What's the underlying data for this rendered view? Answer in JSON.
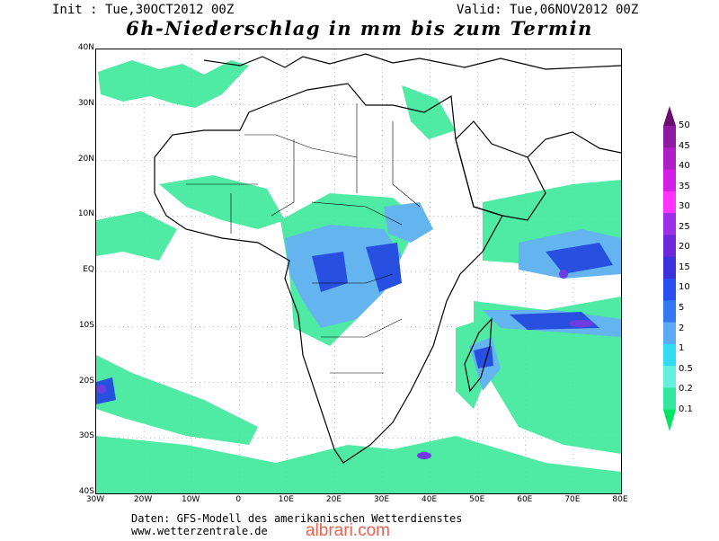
{
  "header": {
    "init": "Init : Tue,30OCT2012 00Z",
    "valid": "Valid: Tue,06NOV2012 00Z",
    "title": "6h-Niederschlag in mm bis zum Termin"
  },
  "map": {
    "region": "Africa",
    "lon_range": [
      -30,
      80
    ],
    "lat_range": [
      -40,
      40
    ],
    "lat_labels": [
      "40N",
      "30N",
      "20N",
      "10N",
      "EQ",
      "10S",
      "20S",
      "30S",
      "40S"
    ],
    "lon_labels": [
      "30W",
      "20W",
      "10W",
      "0",
      "10E",
      "20E",
      "30E",
      "40E",
      "50E",
      "60E",
      "70E",
      "80E"
    ],
    "grid": "dotted",
    "precip_field_colors": [
      "#3ce89a",
      "#64b4f0",
      "#2850e0",
      "#6e3ce0"
    ]
  },
  "legend": {
    "labels": [
      "50",
      "45",
      "40",
      "35",
      "30",
      "25",
      "20",
      "15",
      "10",
      "5",
      "2",
      "1",
      "0.5",
      "0.2",
      "0.1"
    ],
    "colors": [
      "#6a0d6e",
      "#8d1aa0",
      "#b01ec8",
      "#d21ee6",
      "#ff32ff",
      "#9b30e8",
      "#6e28dc",
      "#3c32dc",
      "#2850f0",
      "#3278f0",
      "#5aaaf5",
      "#32dcf5",
      "#64f0dc",
      "#32e6a0",
      "#00e664"
    ]
  },
  "footer": {
    "line1": "Daten: GFS-Modell des amerikanischen Wetterdienstes",
    "line2": "www.wetterzentrale.de"
  },
  "watermark": "albrari.com"
}
